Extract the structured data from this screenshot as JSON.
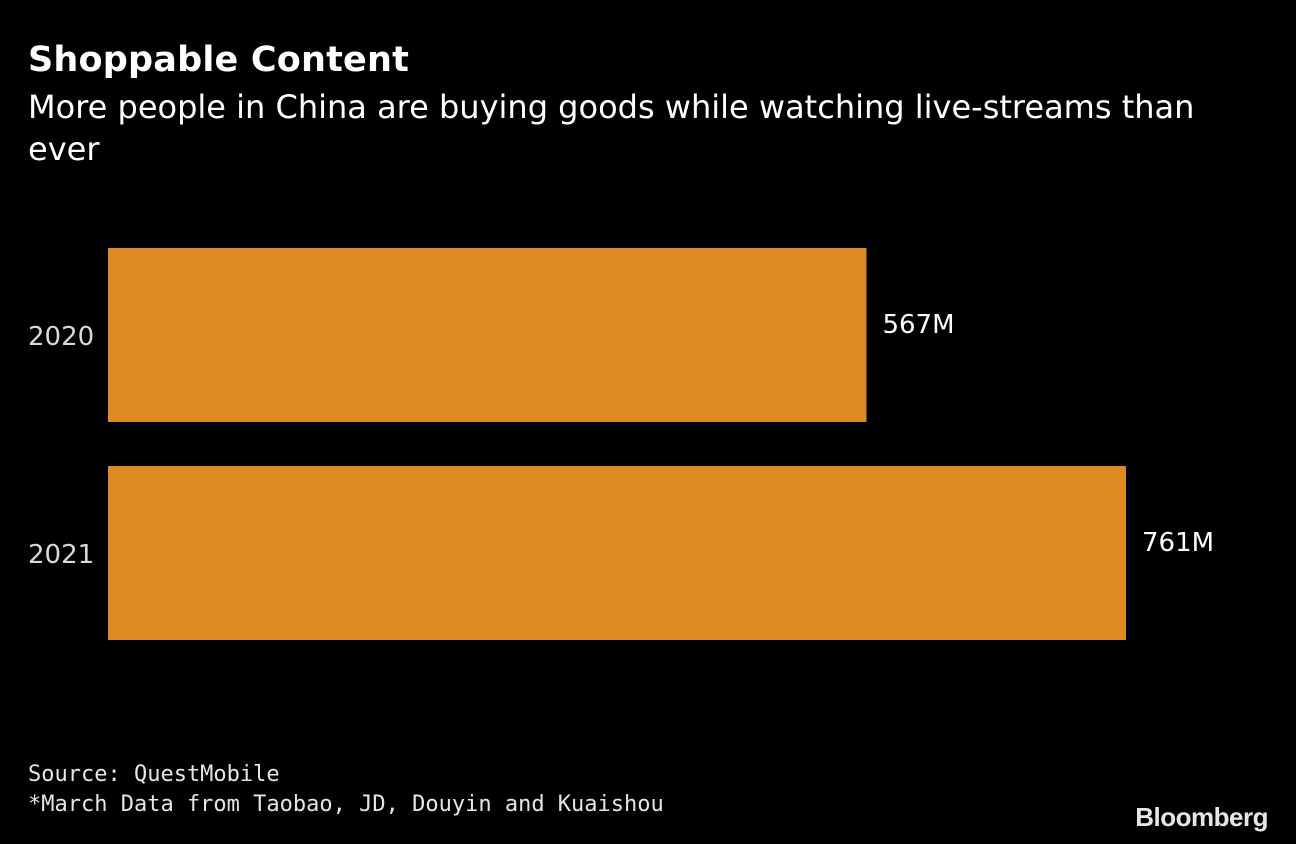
{
  "chart_data": {
    "type": "bar",
    "orientation": "horizontal",
    "title": "Shoppable Content",
    "subtitle": "More people in China are buying goods while watching live-streams than ever",
    "categories": [
      "2020",
      "2021"
    ],
    "values": [
      567,
      761
    ],
    "value_labels": [
      "567M",
      "761M"
    ],
    "unit": "M",
    "xlim": [
      0,
      761
    ],
    "bar_color": "#DE8A24",
    "grid": false
  },
  "footer": {
    "source": "Source: QuestMobile",
    "note": "*March Data from Taobao, JD, Douyin and Kuaishou",
    "logo": "Bloomberg"
  }
}
